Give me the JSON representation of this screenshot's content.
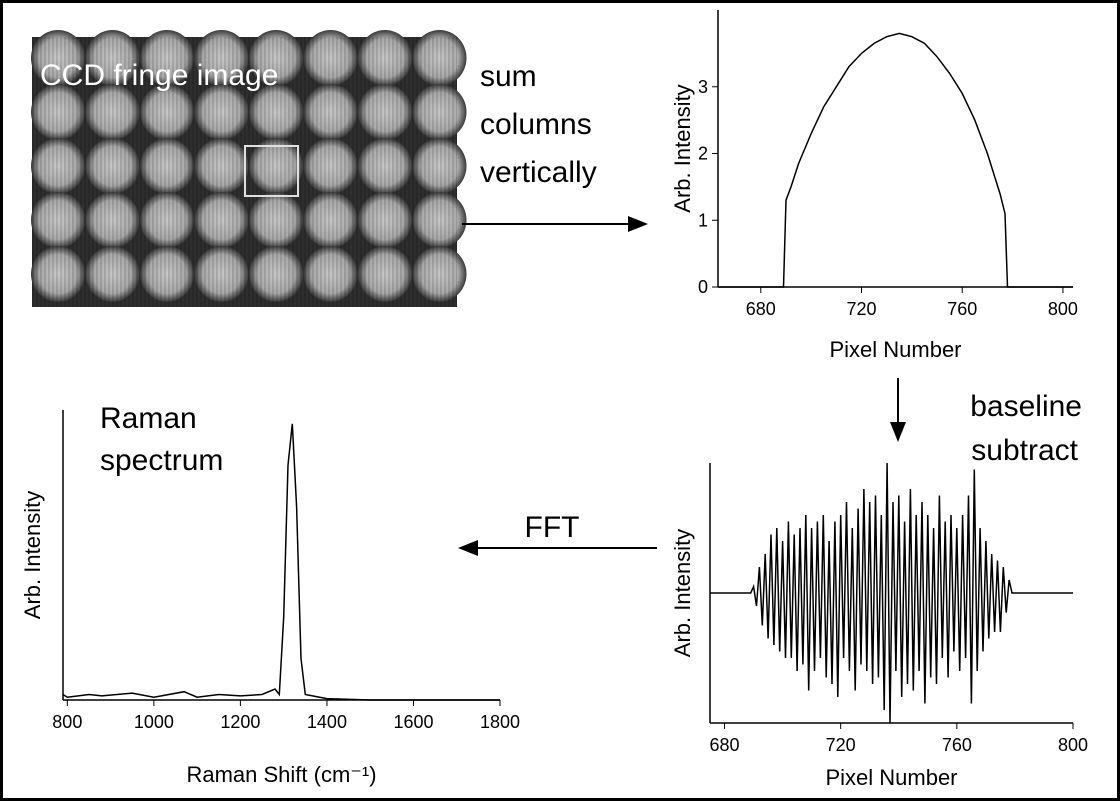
{
  "image_label": "CCD fringe image",
  "step_sum": [
    "sum",
    "columns",
    "vertically"
  ],
  "step_baseline": [
    "baseline",
    "subtract"
  ],
  "step_fft": "FFT",
  "spectrum_label": [
    "Raman",
    "spectrum"
  ],
  "chart_data": [
    {
      "type": "line",
      "color": "#000000",
      "x": [
        663,
        689,
        690,
        692,
        695,
        700,
        705,
        710,
        715,
        720,
        725,
        730,
        735,
        740,
        745,
        750,
        755,
        760,
        765,
        770,
        775,
        777,
        778,
        804
      ],
      "values": [
        0,
        0,
        1.3,
        1.5,
        1.85,
        2.3,
        2.7,
        3.0,
        3.3,
        3.5,
        3.65,
        3.75,
        3.8,
        3.75,
        3.65,
        3.45,
        3.2,
        2.9,
        2.5,
        2.0,
        1.4,
        1.1,
        0,
        0
      ],
      "xlim": [
        663,
        804
      ],
      "ylim": [
        0,
        4.15
      ],
      "xticks": [
        680,
        720,
        760,
        800
      ],
      "yticks": [
        0,
        1,
        2,
        3
      ],
      "xlabel": "Pixel Number",
      "ylabel": "Arb. Intensity"
    },
    {
      "type": "line",
      "color": "#000000",
      "x": [
        675,
        689,
        690,
        691,
        692,
        693,
        694,
        695,
        696,
        697,
        698,
        699,
        700,
        701,
        702,
        703,
        704,
        705,
        706,
        707,
        708,
        709,
        710,
        711,
        712,
        713,
        714,
        715,
        716,
        717,
        718,
        719,
        720,
        721,
        722,
        723,
        724,
        725,
        726,
        727,
        728,
        729,
        730,
        731,
        732,
        733,
        734,
        735,
        736,
        737,
        738,
        739,
        740,
        741,
        742,
        743,
        744,
        745,
        746,
        747,
        748,
        749,
        750,
        751,
        752,
        753,
        754,
        755,
        756,
        757,
        758,
        759,
        760,
        761,
        762,
        763,
        764,
        765,
        766,
        767,
        768,
        769,
        770,
        771,
        772,
        773,
        774,
        775,
        776,
        777,
        778,
        779,
        800
      ],
      "values": [
        0,
        0,
        0.05,
        -0.1,
        0.2,
        -0.25,
        0.3,
        -0.35,
        0.45,
        -0.4,
        0.5,
        -0.45,
        0.4,
        -0.5,
        0.55,
        -0.5,
        0.45,
        -0.6,
        0.5,
        -0.55,
        0.6,
        -0.75,
        0.5,
        -0.6,
        0.55,
        -0.5,
        0.6,
        -0.65,
        0.4,
        -0.7,
        0.55,
        -0.8,
        0.6,
        -0.5,
        0.7,
        -0.6,
        0.5,
        -0.75,
        0.65,
        -0.55,
        0.8,
        -0.6,
        0.7,
        -0.7,
        0.75,
        -0.65,
        0.6,
        -0.9,
        1.0,
        -1.0,
        0.7,
        -0.6,
        0.75,
        -0.8,
        0.55,
        -0.7,
        0.8,
        -0.75,
        0.6,
        -0.6,
        0.7,
        -0.85,
        0.6,
        -0.65,
        0.5,
        -0.7,
        0.75,
        -0.5,
        0.55,
        -0.65,
        0.6,
        -0.45,
        0.5,
        -0.6,
        0.6,
        -0.5,
        0.75,
        -0.85,
        0.95,
        -0.6,
        0.5,
        -0.45,
        0.4,
        -0.35,
        0.3,
        -0.3,
        0.25,
        -0.3,
        0.2,
        -0.15,
        0.1,
        0,
        0
      ],
      "xlim": [
        675,
        800
      ],
      "ylim": [
        -1,
        1
      ],
      "xticks": [
        680,
        720,
        760,
        800
      ],
      "xlabel": "Pixel Number",
      "ylabel": "Arb. Intensity"
    },
    {
      "type": "line",
      "color": "#000000",
      "x": [
        790,
        800,
        850,
        880,
        950,
        1000,
        1070,
        1100,
        1150,
        1200,
        1250,
        1280,
        1290,
        1300,
        1310,
        1320,
        1330,
        1340,
        1350,
        1400,
        1500,
        1800
      ],
      "values": [
        0.02,
        0.01,
        0.02,
        0.015,
        0.025,
        0.01,
        0.03,
        0.01,
        0.02,
        0.015,
        0.02,
        0.04,
        0.02,
        0.3,
        0.85,
        1.0,
        0.7,
        0.15,
        0.02,
        0.005,
        0,
        0
      ],
      "xlim": [
        790,
        1800
      ],
      "ylim": [
        0,
        1.05
      ],
      "xticks": [
        800,
        1000,
        1200,
        1400,
        1600,
        1800
      ],
      "xlabel": "Raman Shift (cm⁻¹)",
      "ylabel": "Arb. Intensity"
    }
  ]
}
